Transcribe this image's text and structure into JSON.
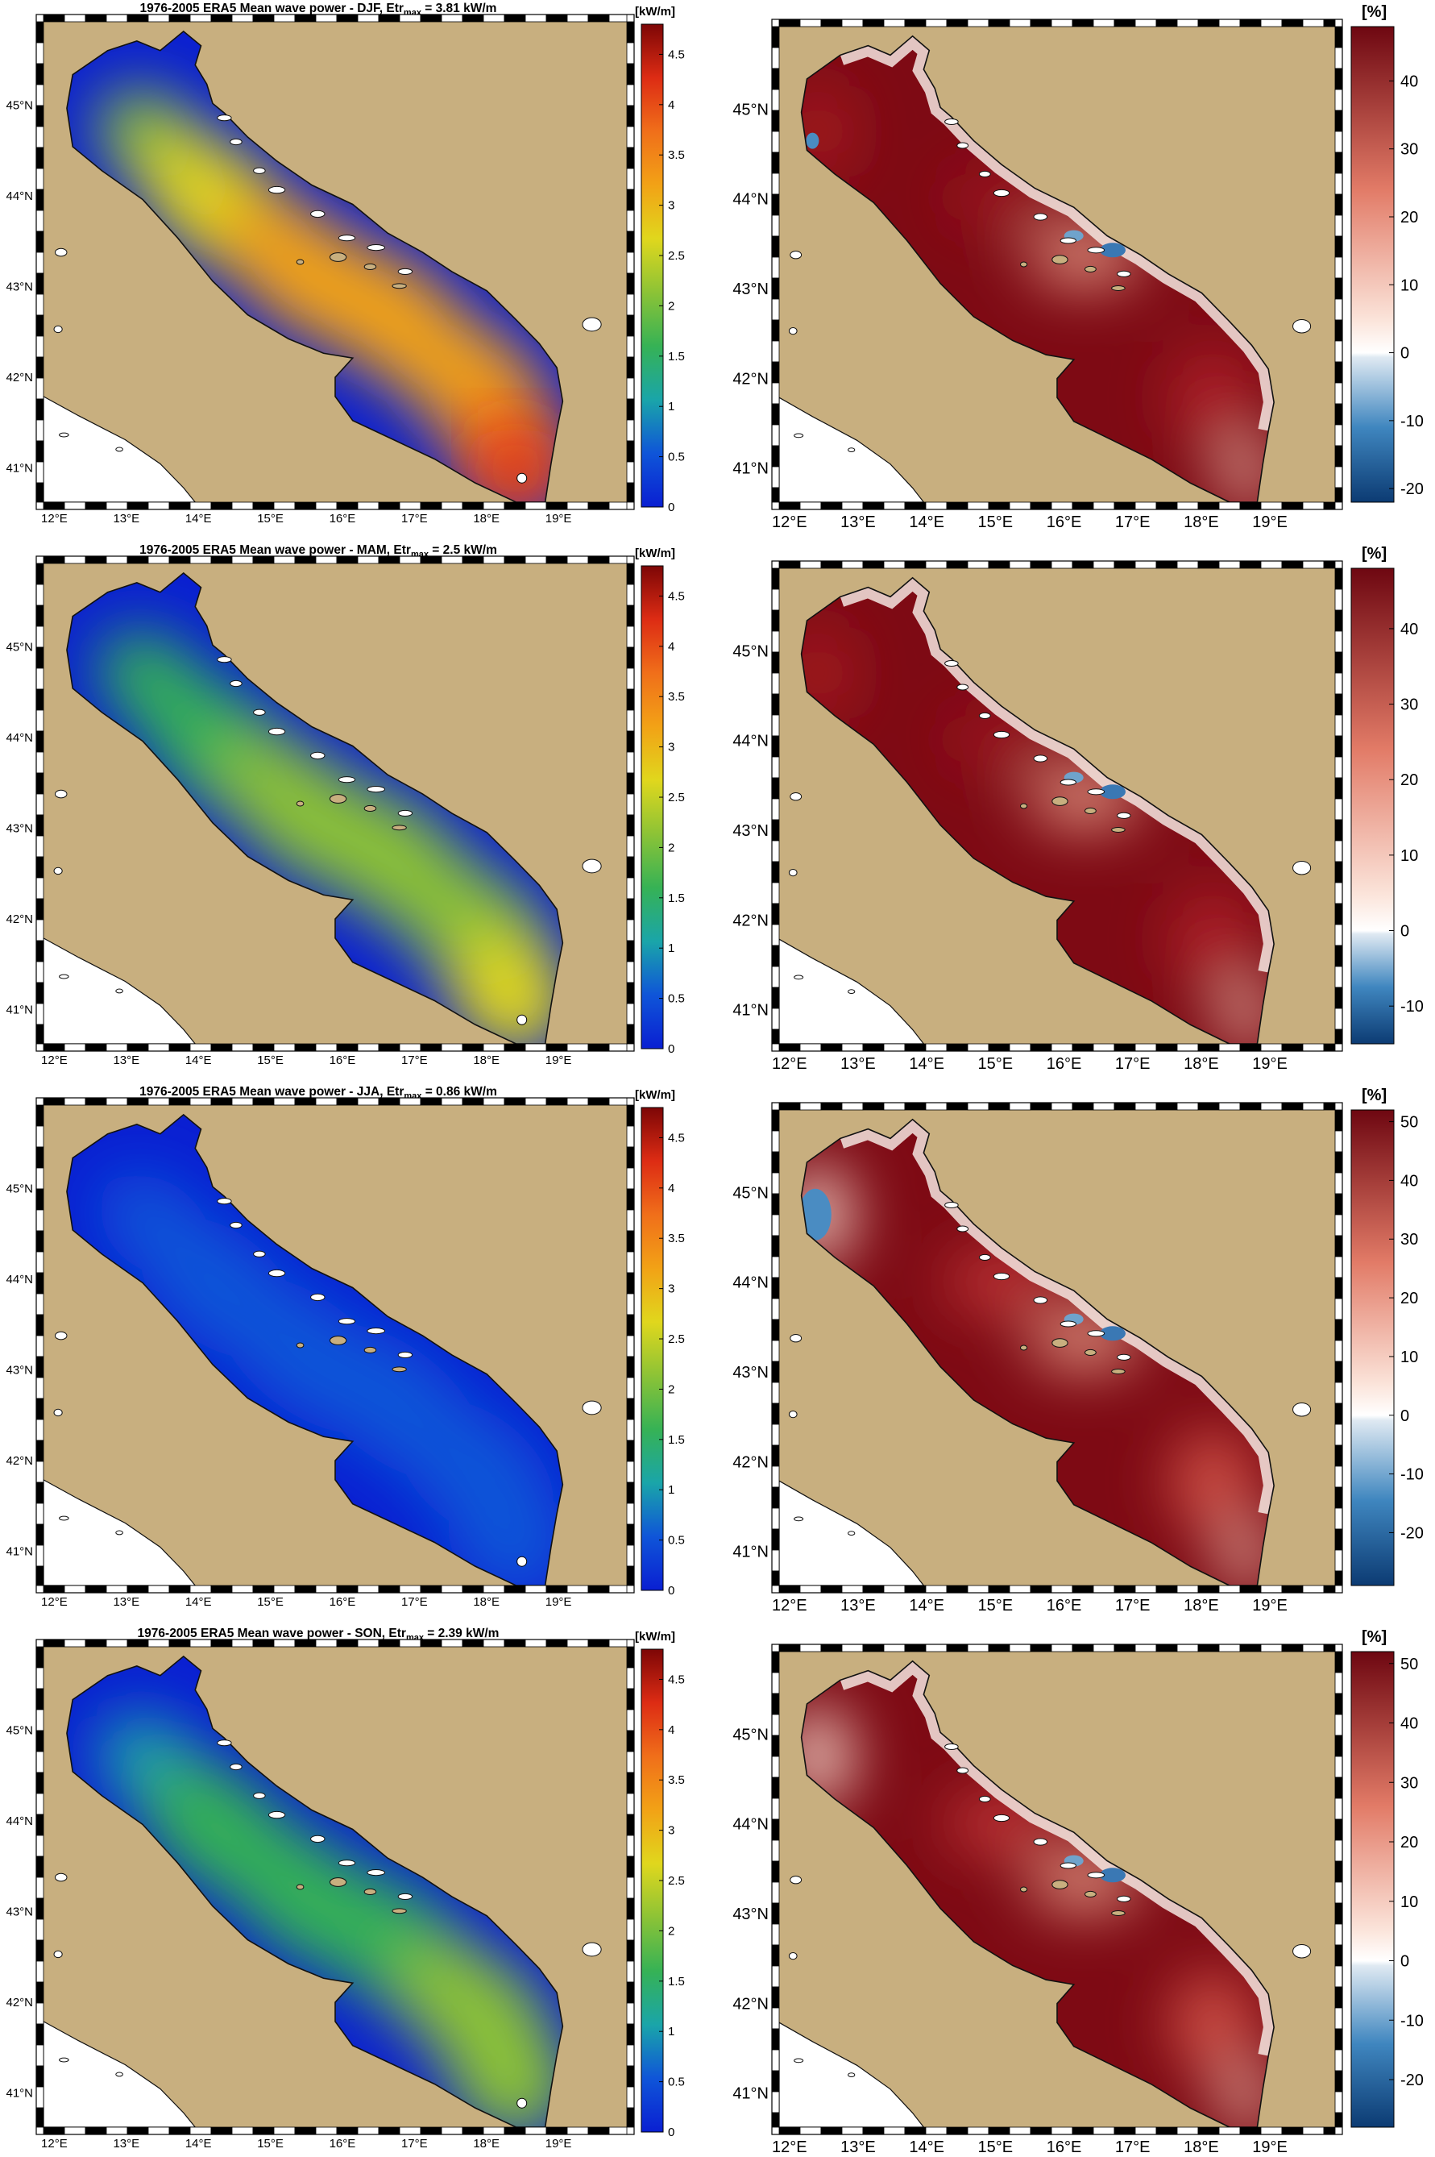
{
  "figure": {
    "lon_ticks": [
      "12°E",
      "13°E",
      "14°E",
      "15°E",
      "16°E",
      "17°E",
      "18°E",
      "19°E"
    ],
    "lat_ticks": [
      "41°N",
      "42°N",
      "43°N",
      "44°N",
      "45°N"
    ],
    "colors": {
      "land": "#c8af7f",
      "other_land": "#ffffff",
      "coast": "#111111",
      "frame_dark": "#000000",
      "frame_light": "#ffffff"
    },
    "power_colorbar": {
      "unit": "[kW/m]",
      "ticks": [
        "0",
        "0.5",
        "1",
        "1.5",
        "2",
        "2.5",
        "3",
        "3.5",
        "4",
        "4.5"
      ],
      "range": [
        0,
        4.8
      ],
      "colors": [
        "#0a1fd2",
        "#0f55d8",
        "#1aa5a9",
        "#36b255",
        "#8cc336",
        "#e0d71d",
        "#f2a216",
        "#f06f1a",
        "#dd2c14",
        "#7d0606"
      ]
    },
    "change_unit": "[%]",
    "rows": [
      {
        "season": "DJF",
        "title_prefix": "1976-2005 ERA5   Mean wave power - DJF, Etr",
        "title_sub": "max",
        "title_suffix": " = 3.81 kW/m",
        "etr_max_kw_m": 3.81,
        "change_ticks": [
          "-20",
          "-10",
          "0",
          "10",
          "20",
          "30",
          "40"
        ],
        "change_range": [
          -22,
          48
        ]
      },
      {
        "season": "MAM",
        "title_prefix": "1976-2005 ERA5   Mean wave power - MAM, Etr",
        "title_sub": "max",
        "title_suffix": " = 2.5 kW/m",
        "etr_max_kw_m": 2.5,
        "change_ticks": [
          "-10",
          "0",
          "10",
          "20",
          "30",
          "40"
        ],
        "change_range": [
          -15,
          48
        ]
      },
      {
        "season": "JJA",
        "title_prefix": "1976-2005 ERA5   Mean wave power - JJA, Etr",
        "title_sub": "max",
        "title_suffix": " = 0.86 kW/m",
        "etr_max_kw_m": 0.86,
        "change_ticks": [
          "-20",
          "-10",
          "0",
          "10",
          "20",
          "30",
          "40",
          "50"
        ],
        "change_range": [
          -29,
          52
        ]
      },
      {
        "season": "SON",
        "title_prefix": "1976-2005 ERA5   Mean wave power - SON, Etr",
        "title_sub": "max",
        "title_suffix": " = 2.39 kW/m",
        "etr_max_kw_m": 2.39,
        "change_ticks": [
          "-20",
          "-10",
          "0",
          "10",
          "20",
          "30",
          "40",
          "50"
        ],
        "change_range": [
          -28,
          52
        ]
      }
    ]
  }
}
